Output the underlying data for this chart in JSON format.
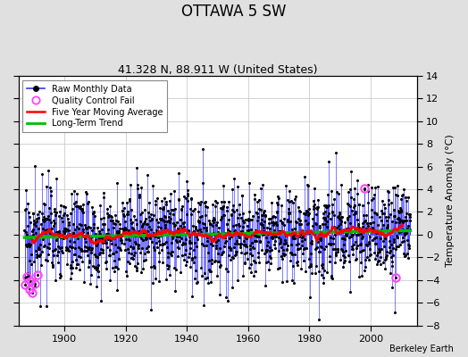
{
  "title": "OTTAWA 5 SW",
  "subtitle": "41.328 N, 88.911 W (United States)",
  "ylabel": "Temperature Anomaly (°C)",
  "credit": "Berkeley Earth",
  "xlim": [
    1885,
    2015
  ],
  "ylim": [
    -8,
    14
  ],
  "yticks": [
    -8,
    -6,
    -4,
    -2,
    0,
    2,
    4,
    6,
    8,
    10,
    12,
    14
  ],
  "xticks": [
    1900,
    1920,
    1940,
    1960,
    1980,
    2000
  ],
  "start_year": 1887,
  "end_year": 2013,
  "seed": 17,
  "raw_color": "#3333ff",
  "raw_marker_color": "#000000",
  "ma_color": "#ff0000",
  "trend_color": "#00bb00",
  "qc_color": "#ff44ff",
  "background_color": "#e0e0e0",
  "plot_bg_color": "#ffffff",
  "title_fontsize": 12,
  "subtitle_fontsize": 9,
  "label_fontsize": 8,
  "tick_fontsize": 8,
  "figwidth": 5.24,
  "figheight": 4.0,
  "dpi": 100
}
